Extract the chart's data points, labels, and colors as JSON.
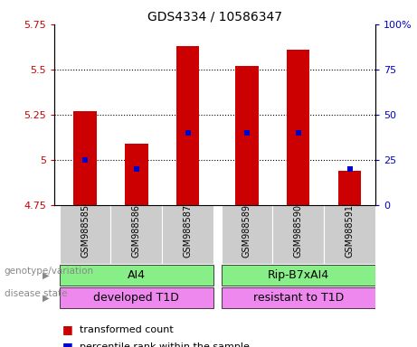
{
  "title": "GDS4334 / 10586347",
  "samples": [
    "GSM988585",
    "GSM988586",
    "GSM988587",
    "GSM988589",
    "GSM988590",
    "GSM988591"
  ],
  "bar_values": [
    5.27,
    5.09,
    5.63,
    5.52,
    5.61,
    4.94
  ],
  "bar_bottom": 4.75,
  "percentile_values": [
    25,
    20,
    40,
    40,
    40,
    20
  ],
  "ylim": [
    4.75,
    5.75
  ],
  "yticks": [
    4.75,
    5.0,
    5.25,
    5.5,
    5.75
  ],
  "ytick_labels": [
    "4.75",
    "5",
    "5.25",
    "5.5",
    "5.75"
  ],
  "right_yticks": [
    0,
    25,
    50,
    75,
    100
  ],
  "right_ytick_labels": [
    "0",
    "25",
    "50",
    "75",
    "100%"
  ],
  "bar_color": "#cc0000",
  "percentile_color": "#0000cc",
  "bar_width": 0.45,
  "genotype_labels": [
    "AI4",
    "Rip-B7xAI4"
  ],
  "disease_labels": [
    "developed T1D",
    "resistant to T1D"
  ],
  "genotype_color": "#88ee88",
  "disease_color": "#ee88ee",
  "tick_bg_color": "#cccccc",
  "legend_red_label": "transformed count",
  "legend_blue_label": "percentile rank within the sample",
  "genotype_label_text": "genotype/variation",
  "disease_label_text": "disease state",
  "left_label_color": "#888888",
  "title_color": "#000000",
  "grid_lines": [
    5.0,
    5.25,
    5.5
  ],
  "gap_between_groups": true
}
